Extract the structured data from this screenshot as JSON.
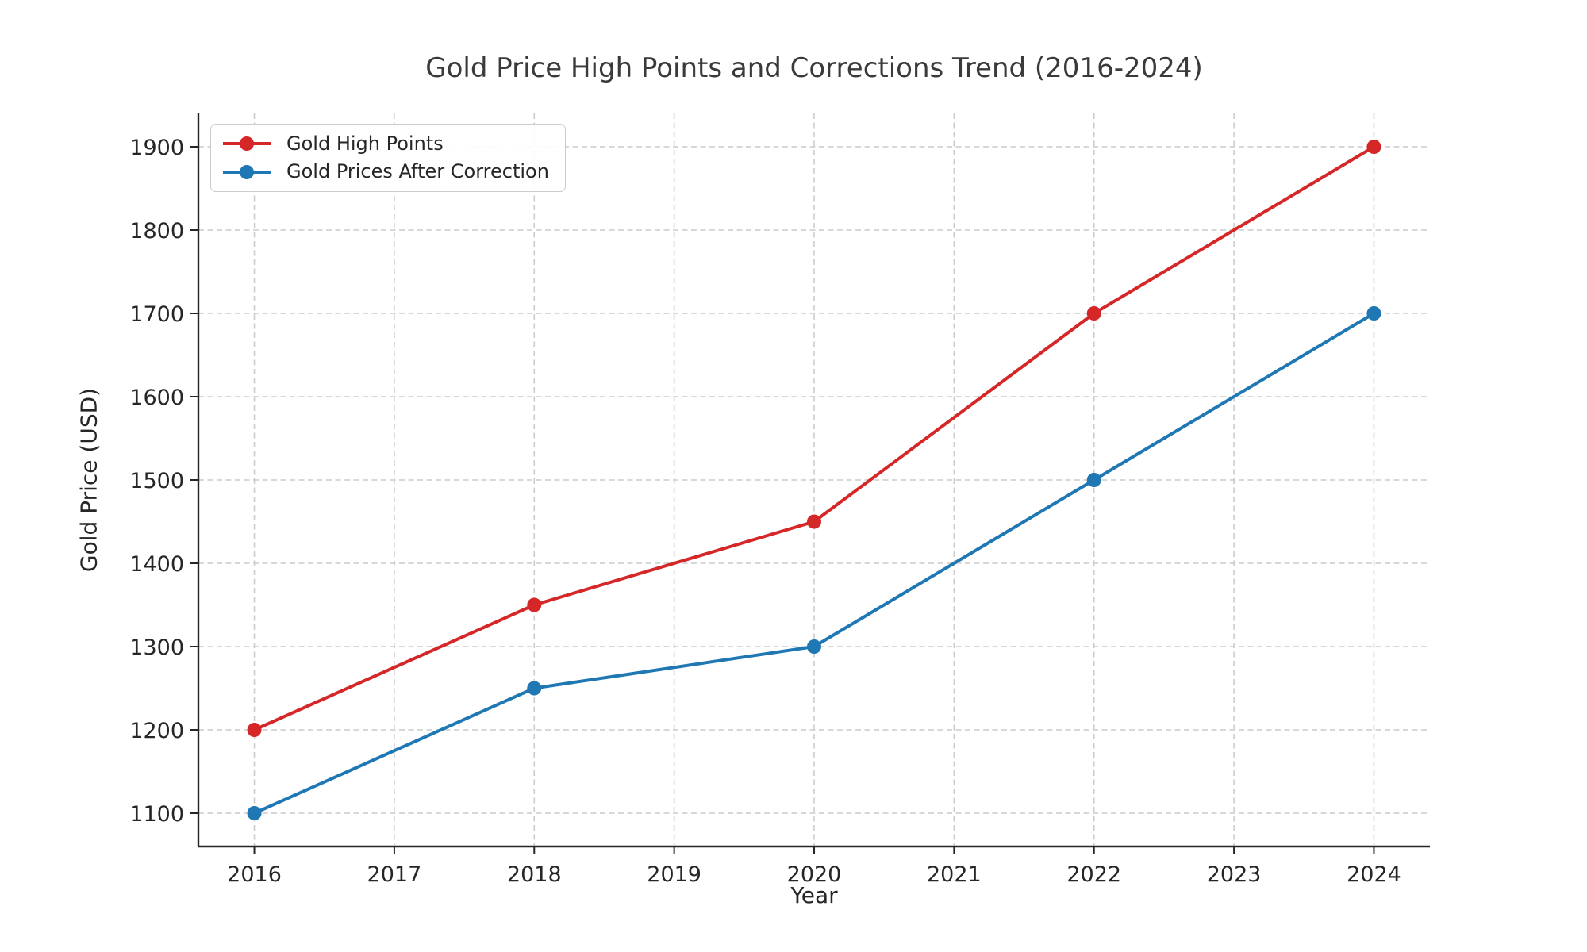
{
  "chart_data": {
    "type": "line",
    "title": "Gold Price High Points and Corrections Trend (2016-2024)",
    "xlabel": "Year",
    "ylabel": "Gold Price (USD)",
    "x": [
      2016,
      2018,
      2020,
      2022,
      2024
    ],
    "series": [
      {
        "name": "Gold High Points",
        "color": "#d62728",
        "values": [
          1200,
          1350,
          1450,
          1700,
          1900
        ]
      },
      {
        "name": "Gold Prices After Correction",
        "color": "#1f77b4",
        "values": [
          1100,
          1250,
          1300,
          1500,
          1700
        ]
      }
    ],
    "xticks": [
      2016,
      2017,
      2018,
      2019,
      2020,
      2021,
      2022,
      2023,
      2024
    ],
    "yticks": [
      1100,
      1200,
      1300,
      1400,
      1500,
      1600,
      1700,
      1800,
      1900
    ],
    "xlim": [
      2015.6,
      2024.4
    ],
    "ylim": [
      1060,
      1940
    ],
    "grid": true,
    "legend_position": "upper left",
    "marker": "circle",
    "colors": {
      "grid": "#cccccc",
      "spine": "#262626",
      "tick_text": "#262626",
      "title_text": "#3a3a3a"
    }
  }
}
